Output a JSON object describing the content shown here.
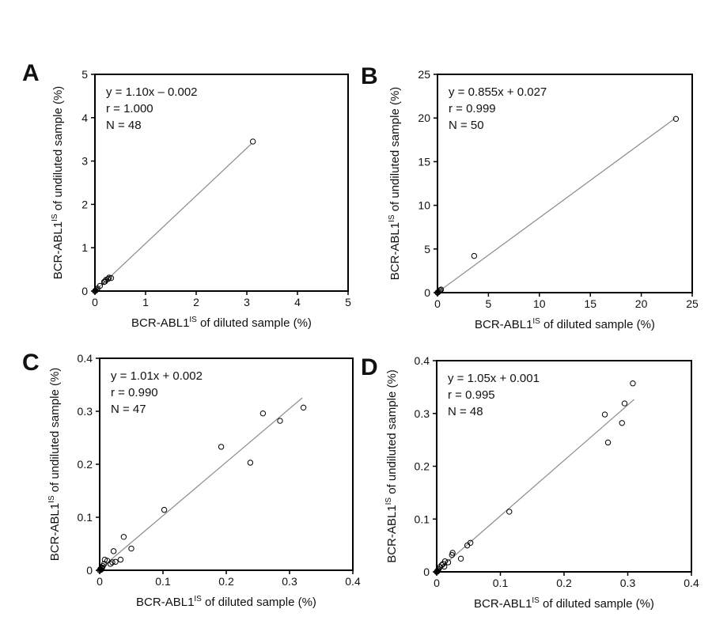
{
  "chart_data": [
    {
      "type": "scatter",
      "panel_label": "A",
      "xlabel_prefix": "BCR-ABL1",
      "xlabel_sup": "IS",
      "xlabel_suffix": " of diluted sample (%)",
      "ylabel_prefix": "BCR-ABL1",
      "ylabel_sup": "IS",
      "ylabel_suffix": " of undiluted sample (%)",
      "xlim": [
        0,
        5
      ],
      "ylim": [
        0,
        5
      ],
      "xticks": [
        "0",
        "1",
        "2",
        "3",
        "4",
        "5"
      ],
      "yticks": [
        "0",
        "1",
        "2",
        "3",
        "4",
        "5"
      ],
      "annotations": [
        "y = 1.10x – 0.002",
        "r = 1.000",
        "N = 48"
      ],
      "fit": {
        "slope": 1.1,
        "intercept": -0.002,
        "x_range": [
          0,
          3.1
        ]
      },
      "points": [
        [
          3.12,
          3.45
        ],
        [
          0.32,
          0.3
        ],
        [
          0.28,
          0.31
        ],
        [
          0.26,
          0.28
        ],
        [
          0.22,
          0.26
        ],
        [
          0.2,
          0.22
        ],
        [
          0.18,
          0.21
        ],
        [
          0.1,
          0.12
        ],
        [
          0.05,
          0.06
        ],
        [
          0.03,
          0.03
        ],
        [
          0.01,
          0.01
        ],
        [
          0.0,
          0.0
        ]
      ]
    },
    {
      "type": "scatter",
      "panel_label": "B",
      "xlabel_prefix": "BCR-ABL1",
      "xlabel_sup": "IS",
      "xlabel_suffix": " of diluted sample (%)",
      "ylabel_prefix": "BCR-ABL1",
      "ylabel_sup": "IS",
      "ylabel_suffix": " of undiluted sample (%)",
      "xlim": [
        0,
        25
      ],
      "ylim": [
        0,
        25
      ],
      "xticks": [
        "0",
        "5",
        "10",
        "15",
        "20",
        "25"
      ],
      "yticks": [
        "0",
        "5",
        "10",
        "15",
        "20",
        "25"
      ],
      "annotations": [
        "y = 0.855x + 0.027",
        "r = 0.999",
        "N = 50"
      ],
      "fit": {
        "slope": 0.855,
        "intercept": 0.027,
        "x_range": [
          0,
          23.3
        ]
      },
      "points": [
        [
          23.4,
          19.9
        ],
        [
          3.6,
          4.2
        ],
        [
          0.35,
          0.35
        ],
        [
          0.25,
          0.28
        ],
        [
          0.15,
          0.15
        ],
        [
          0.05,
          0.05
        ],
        [
          0.0,
          0.0
        ]
      ]
    },
    {
      "type": "scatter",
      "panel_label": "C",
      "xlabel_prefix": "BCR-ABL1",
      "xlabel_sup": "IS",
      "xlabel_suffix": " of diluted sample (%)",
      "ylabel_prefix": "BCR-ABL1",
      "ylabel_sup": "IS",
      "ylabel_suffix": " of undiluted sample (%)",
      "xlim": [
        0,
        0.4
      ],
      "ylim": [
        0,
        0.4
      ],
      "xticks": [
        "0",
        "0.1",
        "0.2",
        "0.3",
        "0.4"
      ],
      "yticks": [
        "0",
        "0.1",
        "0.2",
        "0.3",
        "0.4"
      ],
      "annotations": [
        "y = 1.01x + 0.002",
        "r = 0.990",
        "N = 47"
      ],
      "fit": {
        "slope": 1.01,
        "intercept": 0.002,
        "x_range": [
          0,
          0.32
        ]
      },
      "points": [
        [
          0.322,
          0.307
        ],
        [
          0.285,
          0.282
        ],
        [
          0.258,
          0.296
        ],
        [
          0.192,
          0.233
        ],
        [
          0.238,
          0.203
        ],
        [
          0.102,
          0.114
        ],
        [
          0.038,
          0.063
        ],
        [
          0.05,
          0.041
        ],
        [
          0.022,
          0.036
        ],
        [
          0.033,
          0.02
        ],
        [
          0.025,
          0.016
        ],
        [
          0.02,
          0.015
        ],
        [
          0.017,
          0.012
        ],
        [
          0.012,
          0.018
        ],
        [
          0.008,
          0.02
        ],
        [
          0.007,
          0.012
        ],
        [
          0.005,
          0.008
        ],
        [
          0.004,
          0.005
        ],
        [
          0.003,
          0.003
        ],
        [
          0.002,
          0.001
        ],
        [
          0.001,
          0.002
        ],
        [
          0.0,
          0.0
        ]
      ]
    },
    {
      "type": "scatter",
      "panel_label": "D",
      "xlabel_prefix": "BCR-ABL1",
      "xlabel_sup": "IS",
      "xlabel_suffix": " of diluted sample (%)",
      "ylabel_prefix": "BCR-ABL1",
      "ylabel_sup": "IS",
      "ylabel_suffix": " of undiluted sample (%)",
      "xlim": [
        0,
        0.4
      ],
      "ylim": [
        0,
        0.4
      ],
      "xticks": [
        "0",
        "0.1",
        "0.2",
        "0.3",
        "0.4"
      ],
      "yticks": [
        "0",
        "0.1",
        "0.2",
        "0.3",
        "0.4"
      ],
      "annotations": [
        "y = 1.05x + 0.001",
        "r = 0.995",
        "N = 48"
      ],
      "fit": {
        "slope": 1.05,
        "intercept": 0.001,
        "x_range": [
          0,
          0.31
        ]
      },
      "points": [
        [
          0.308,
          0.357
        ],
        [
          0.295,
          0.319
        ],
        [
          0.264,
          0.298
        ],
        [
          0.291,
          0.282
        ],
        [
          0.269,
          0.245
        ],
        [
          0.114,
          0.114
        ],
        [
          0.053,
          0.055
        ],
        [
          0.048,
          0.05
        ],
        [
          0.025,
          0.036
        ],
        [
          0.024,
          0.032
        ],
        [
          0.018,
          0.018
        ],
        [
          0.038,
          0.025
        ],
        [
          0.013,
          0.02
        ],
        [
          0.012,
          0.01
        ],
        [
          0.01,
          0.015
        ],
        [
          0.008,
          0.013
        ],
        [
          0.005,
          0.009
        ],
        [
          0.003,
          0.005
        ],
        [
          0.002,
          0.003
        ],
        [
          0.001,
          0.001
        ],
        [
          0.0,
          0.0
        ]
      ]
    }
  ]
}
